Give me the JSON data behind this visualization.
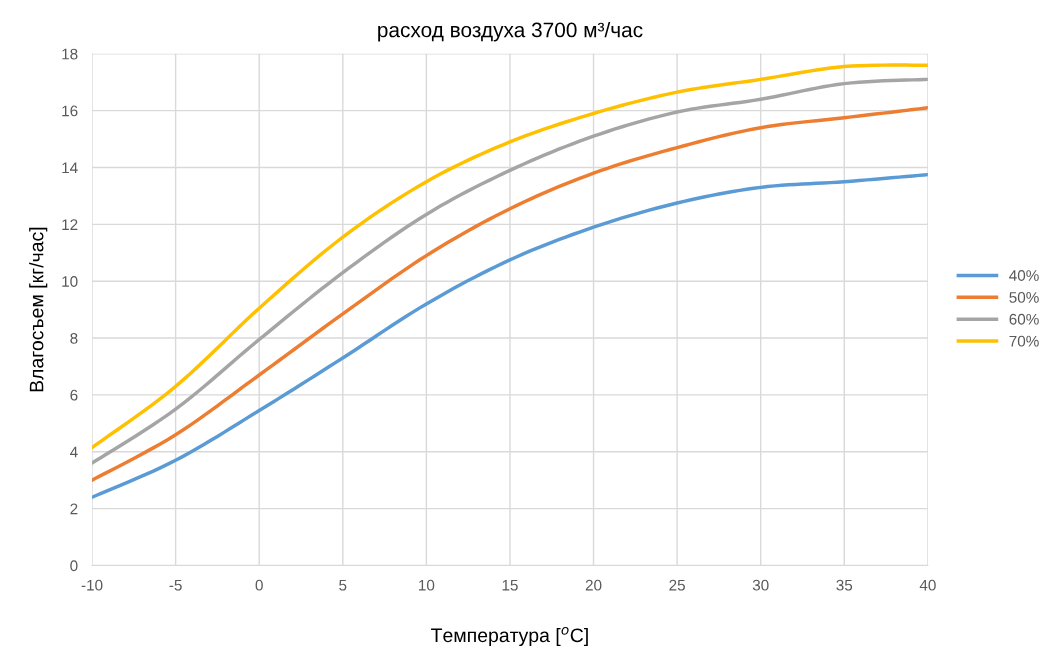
{
  "chart_data": {
    "type": "line",
    "title": "расход воздуха 3700 м³/час",
    "xlabel": "Температура [$^{o}$C]",
    "ylabel": "Влагосъем [кг/час]",
    "x": [
      -10,
      -5,
      0,
      5,
      10,
      15,
      20,
      25,
      30,
      35,
      40
    ],
    "series": [
      {
        "name": "40%",
        "color": "#5b9bd5",
        "values": [
          2.4,
          3.7,
          5.45,
          7.3,
          9.2,
          10.75,
          11.9,
          12.75,
          13.3,
          13.5,
          13.75
        ]
      },
      {
        "name": "50%",
        "color": "#ed7d31",
        "values": [
          3.0,
          4.6,
          6.7,
          8.85,
          10.9,
          12.55,
          13.8,
          14.7,
          15.4,
          15.75,
          16.1
        ]
      },
      {
        "name": "60%",
        "color": "#a5a5a5",
        "values": [
          3.6,
          5.5,
          7.95,
          10.3,
          12.35,
          13.9,
          15.1,
          15.95,
          16.4,
          16.95,
          17.1
        ]
      },
      {
        "name": "70%",
        "color": "#ffc000",
        "values": [
          4.15,
          6.3,
          9.05,
          11.55,
          13.5,
          14.9,
          15.9,
          16.65,
          17.1,
          17.55,
          17.6
        ]
      }
    ],
    "xlim": [
      -10,
      40
    ],
    "xticks": [
      -10,
      -5,
      0,
      5,
      10,
      15,
      20,
      25,
      30,
      35,
      40
    ],
    "ylim": [
      0,
      18
    ],
    "yticks": [
      0,
      2,
      4,
      6,
      8,
      10,
      12,
      14,
      16,
      18
    ],
    "grid": true,
    "legend": "right",
    "marker": "none",
    "line_style": "solid"
  }
}
